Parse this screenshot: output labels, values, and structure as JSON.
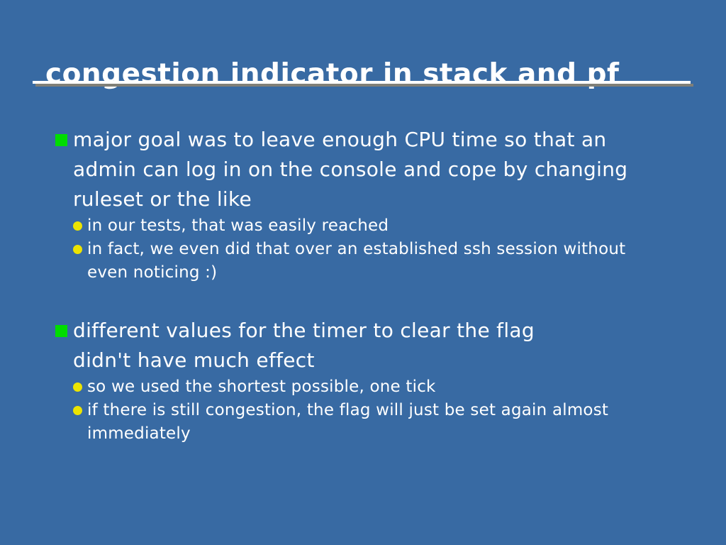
{
  "slide": {
    "title": "congestion indicator in stack and pf",
    "colors": {
      "background": "#386aa3",
      "text": "#ffffff",
      "underline_top": "#ffffff",
      "underline_shadow": "#7f7f78",
      "bullet_level1": "#00dd00",
      "bullet_level2": "#ece400"
    },
    "icons": {
      "level1_bullet": "green-square-bullet-icon",
      "level2_bullet": "yellow-dot-bullet-icon"
    }
  },
  "content": {
    "bullets": [
      {
        "level": 1,
        "text": "major goal was to leave enough CPU time so that an\nadmin can log in on the console and cope by changing\nruleset or the like"
      },
      {
        "level": 2,
        "text": "in our tests, that was easily reached"
      },
      {
        "level": 2,
        "text": "in fact, we even did that over an established ssh session without\neven noticing :)"
      },
      {
        "level": 1,
        "text": "different values for the timer to clear the flag\ndidn't have much effect"
      },
      {
        "level": 2,
        "text": "so we used the shortest possible, one tick"
      },
      {
        "level": 2,
        "text": "if there is still congestion, the flag will just be set again almost\nimmediately"
      }
    ]
  }
}
